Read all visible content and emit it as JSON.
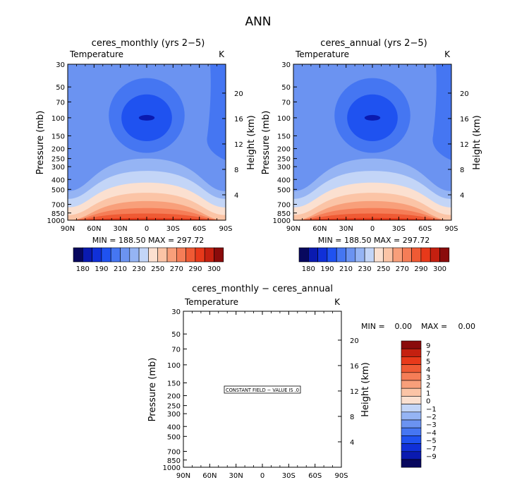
{
  "page_title": "ANN",
  "colors": {
    "scale": [
      "#08085e",
      "#0a1ab0",
      "#1030d8",
      "#1f52f0",
      "#4576f2",
      "#6b93f1",
      "#95b4f4",
      "#c3d5f7",
      "#fbe0d0",
      "#fbc4a6",
      "#f89f7a",
      "#f57d57",
      "#ef5a34",
      "#e8391a",
      "#c52010",
      "#8a0b0b"
    ]
  },
  "chart_data": [
    {
      "type": "contour",
      "title": "ceres_monthly (yrs 2−5)",
      "variable_label": "Temperature",
      "units_label": "K",
      "ylabel": "Pressure (mb)",
      "y2label": "Height (km)",
      "x_ticks": [
        "90N",
        "60N",
        "30N",
        "0",
        "30S",
        "60S",
        "90S"
      ],
      "y_ticks": [
        "30",
        "50",
        "70",
        "100",
        "150",
        "200",
        "250",
        "300",
        "400",
        "500",
        "700",
        "850",
        "1000"
      ],
      "y2_ticks": [
        "20",
        "16",
        "12",
        "8",
        "4"
      ],
      "stats": "MIN = 188.50   MAX = 297.72",
      "colorbar": {
        "levels": [
          "180",
          "190",
          "210",
          "230",
          "250",
          "270",
          "290",
          "300"
        ]
      }
    },
    {
      "type": "contour",
      "title": "ceres_annual (yrs 2−5)",
      "variable_label": "Temperature",
      "units_label": "K",
      "ylabel": "Pressure (mb)",
      "y2label": "Height (km)",
      "x_ticks": [
        "90N",
        "60N",
        "30N",
        "0",
        "30S",
        "60S",
        "90S"
      ],
      "y_ticks": [
        "30",
        "50",
        "70",
        "100",
        "150",
        "200",
        "250",
        "300",
        "400",
        "500",
        "700",
        "850",
        "1000"
      ],
      "y2_ticks": [
        "20",
        "16",
        "12",
        "8",
        "4"
      ],
      "stats": "MIN = 188.50   MAX = 297.72",
      "colorbar": {
        "levels": [
          "180",
          "190",
          "210",
          "230",
          "250",
          "270",
          "290",
          "300"
        ]
      }
    },
    {
      "type": "contour",
      "title": "ceres_monthly − ceres_annual",
      "variable_label": "Temperature",
      "units_label": "K",
      "ylabel": "Pressure (mb)",
      "y2label": "Height (km)",
      "x_ticks": [
        "90N",
        "60N",
        "30N",
        "0",
        "30S",
        "60S",
        "90S"
      ],
      "y_ticks": [
        "30",
        "50",
        "70",
        "100",
        "150",
        "200",
        "250",
        "300",
        "400",
        "500",
        "700",
        "850",
        "1000"
      ],
      "y2_ticks": [
        "20",
        "16",
        "12",
        "8",
        "4"
      ],
      "min_label": "MIN =",
      "min_value": "0.00",
      "max_label": "MAX =",
      "max_value": "0.00",
      "annotation": "CONSTANT FIELD − VALUE IS .0",
      "colorbar": {
        "levels": [
          "9",
          "7",
          "5",
          "4",
          "3",
          "2",
          "1",
          "0",
          "−1",
          "−2",
          "−3",
          "−4",
          "−5",
          "−7",
          "−9"
        ]
      }
    }
  ]
}
